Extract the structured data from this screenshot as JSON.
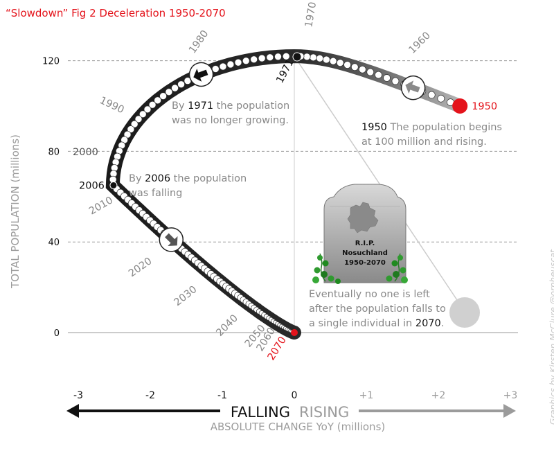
{
  "title": "“Slowdown” Fig 2 Deceleration 1950-2070",
  "credit": "Graphics by Kirsten McClure @orpheuscat",
  "chart_data": {
    "type": "scatter",
    "xlabel": "ABSOLUTE CHANGE YoY (millions)",
    "ylabel": "TOTAL POPULATION (millions)",
    "xlim": [
      -3,
      3
    ],
    "ylim": [
      0,
      120
    ],
    "x_ticks": [
      "-3",
      "-2",
      "-1",
      "0",
      "+1",
      "+2",
      "+3"
    ],
    "y_ticks": [
      "0",
      "40",
      "80",
      "120"
    ],
    "falling_label": "FALLING",
    "rising_label": "RISING",
    "decade_labels": [
      {
        "year": "1960",
        "x": 1.7,
        "y": 117
      },
      {
        "year": "1970",
        "x": 0.2,
        "y": 124
      },
      {
        "year": "1980",
        "x": -1.45,
        "y": 119
      },
      {
        "year": "1990",
        "x": -2.5,
        "y": 97
      },
      {
        "year": "2000",
        "x": -2.8,
        "y": 80
      },
      {
        "year": "2010",
        "x": -2.5,
        "y": 50
      },
      {
        "year": "2020",
        "x": -1.8,
        "y": 27
      },
      {
        "year": "2030",
        "x": -1.35,
        "y": 15
      },
      {
        "year": "2040",
        "x": -0.6,
        "y": 5
      },
      {
        "year": "2050",
        "x": -0.35,
        "y": 1
      },
      {
        "year": "2060",
        "x": -0.15,
        "y": -1
      },
      {
        "year": "2070",
        "x": 0,
        "y": 0
      }
    ],
    "key_points": [
      {
        "year": "1950",
        "x": 2.3,
        "y": 100
      },
      {
        "year": "1971",
        "x": 0,
        "y": 122
      },
      {
        "year": "2006",
        "x": -2.52,
        "y": 65
      },
      {
        "year": "2070",
        "x": 0,
        "y": 0
      }
    ],
    "annotations": {
      "a1950_year": "1950",
      "a1950_text1": " The population begins",
      "a1950_text2": "at 100 million and rising.",
      "a1971_pre": "By ",
      "a1971_year": "1971",
      "a1971_text1": " the population",
      "a1971_text2": "was no longer growing.",
      "a2006_pre": "By ",
      "a2006_year": "2006",
      "a2006_text1": " the population",
      "a2006_text2": "was falling",
      "end_text1": "Eventually no one is left",
      "end_text2": "after the population falls to",
      "end_text3": "a single individual in ",
      "end_year": "2070",
      "end_dot": "."
    },
    "tombstone": {
      "line1": "R.I.P.",
      "line2": "Nosuchland",
      "line3": "1950-2070"
    },
    "colors": {
      "rising": "#9b9b9b",
      "falling": "#111111",
      "highlight": "#e4131b",
      "grid": "#999999"
    },
    "grid": true
  }
}
